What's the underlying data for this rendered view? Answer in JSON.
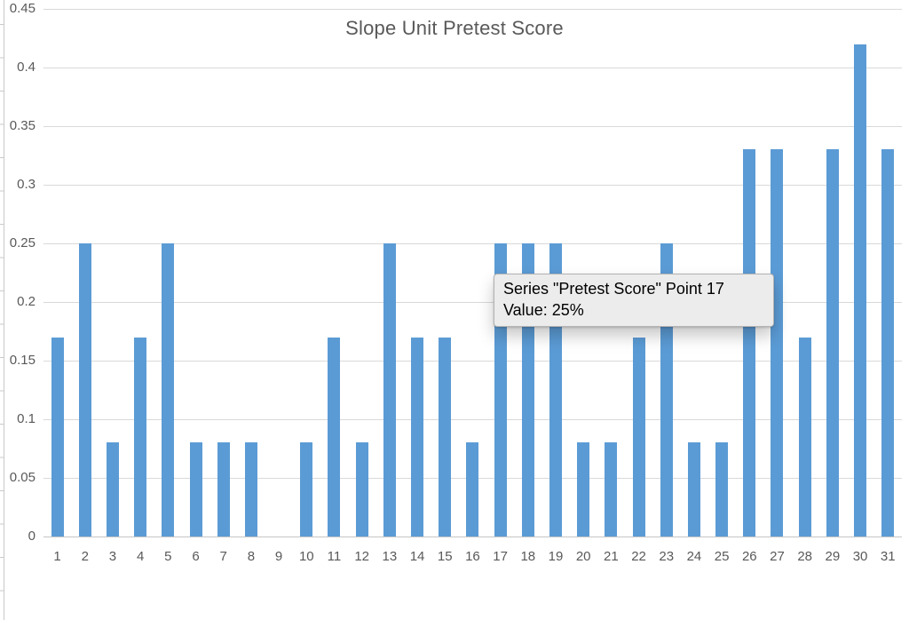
{
  "chart_data": {
    "type": "bar",
    "title": "Slope Unit Pretest Score",
    "series": [
      {
        "name": "Pretest Score",
        "values": [
          0.17,
          0.25,
          0.08,
          0.17,
          0.25,
          0.08,
          0.08,
          0.08,
          0,
          0.08,
          0.17,
          0.08,
          0.25,
          0.17,
          0.17,
          0.08,
          0.25,
          0.25,
          0.25,
          0.08,
          0.08,
          0.17,
          0.25,
          0.08,
          0.08,
          0.33,
          0.33,
          0.17,
          0.33,
          0.42,
          0.33
        ]
      }
    ],
    "categories": [
      "1",
      "2",
      "3",
      "4",
      "5",
      "6",
      "7",
      "8",
      "9",
      "10",
      "11",
      "12",
      "13",
      "14",
      "15",
      "16",
      "17",
      "18",
      "19",
      "20",
      "21",
      "22",
      "23",
      "24",
      "25",
      "26",
      "27",
      "28",
      "29",
      "30",
      "31"
    ],
    "xlabel": "",
    "ylabel": "",
    "y_ticks": [
      "0.45",
      "0.4",
      "0.35",
      "0.3",
      "0.25",
      "0.2",
      "0.15",
      "0.1",
      "0.05",
      "0"
    ],
    "ylim": [
      0,
      0.45
    ],
    "grid": true,
    "legend": "none",
    "colors": {
      "bar": "#5b9bd5",
      "gridline": "#d9d9d9",
      "axis_line": "#c6c6c6",
      "text": "#595959"
    }
  },
  "tooltip": {
    "line1": "Series \"Pretest Score\" Point 17",
    "line2": "Value: 25%",
    "point_index": 17,
    "background": "#ececec",
    "border": "#b3b3b3"
  }
}
